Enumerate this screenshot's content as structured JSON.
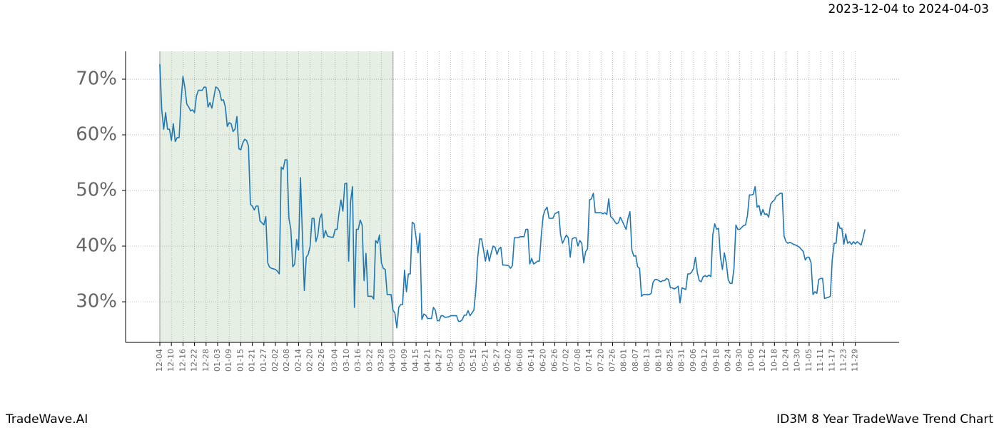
{
  "chart_data": {
    "type": "line",
    "title": "2023-12-04 to 2024-04-03",
    "footer_left": "TradeWave.AI",
    "footer_right": "ID3M 8 Year TradeWave Trend Chart",
    "color": "#1f77b4",
    "grid": true,
    "highlight": {
      "from": "12-04",
      "to": "04-03",
      "color": "#e5efe3"
    },
    "ylim": [
      22.7,
      75
    ],
    "yticks": [
      {
        "value": 30,
        "label": "30%"
      },
      {
        "value": 40,
        "label": "40%"
      },
      {
        "value": 50,
        "label": "50%"
      },
      {
        "value": 60,
        "label": "60%"
      },
      {
        "value": 70,
        "label": "70%"
      }
    ],
    "xticks": [
      "12-04",
      "12-10",
      "12-16",
      "12-22",
      "12-28",
      "01-03",
      "01-09",
      "01-15",
      "01-21",
      "01-27",
      "02-02",
      "02-08",
      "02-14",
      "02-20",
      "02-26",
      "03-04",
      "03-10",
      "03-16",
      "03-22",
      "03-28",
      "04-03",
      "04-09",
      "04-15",
      "04-21",
      "04-27",
      "05-03",
      "05-09",
      "05-15",
      "05-21",
      "05-27",
      "06-02",
      "06-08",
      "06-14",
      "06-20",
      "06-26",
      "07-02",
      "07-08",
      "07-14",
      "07-20",
      "07-26",
      "08-01",
      "08-07",
      "08-13",
      "08-19",
      "08-25",
      "08-31",
      "09-06",
      "09-12",
      "09-18",
      "09-24",
      "09-30",
      "10-06",
      "10-12",
      "10-18",
      "10-24",
      "10-30",
      "11-05",
      "11-11",
      "11-17",
      "11-23",
      "11-29"
    ],
    "x": [
      "12-04",
      "12-05",
      "12-06",
      "12-07",
      "12-08",
      "12-09",
      "12-10",
      "12-11",
      "12-12",
      "12-13",
      "12-14",
      "12-15",
      "12-16",
      "12-17",
      "12-18",
      "12-19",
      "12-20",
      "12-21",
      "12-22",
      "12-23",
      "12-24",
      "12-25",
      "12-26",
      "12-27",
      "12-28",
      "12-29",
      "12-30",
      "12-31",
      "01-02",
      "01-03",
      "01-04",
      "01-05",
      "01-06",
      "01-07",
      "01-08",
      "01-09",
      "01-10",
      "01-11",
      "01-12",
      "01-13",
      "01-14",
      "01-15",
      "01-16",
      "01-17",
      "01-18",
      "01-19",
      "01-20",
      "01-21",
      "01-22",
      "01-23",
      "01-24",
      "01-25",
      "01-26",
      "01-27",
      "01-28",
      "01-29",
      "01-30",
      "01-31",
      "02-02",
      "02-03",
      "02-04",
      "02-05",
      "02-06",
      "02-07",
      "02-08",
      "02-09",
      "02-10",
      "02-11",
      "02-12",
      "02-13",
      "02-14",
      "02-15",
      "02-16",
      "02-17",
      "02-18",
      "02-19",
      "02-20",
      "02-21",
      "02-22",
      "02-23",
      "02-24",
      "02-25",
      "02-26",
      "02-27",
      "02-28",
      "02-29",
      "03-02",
      "03-03",
      "03-04",
      "03-05",
      "03-06",
      "03-07",
      "03-08",
      "03-09",
      "03-10",
      "03-11",
      "03-12",
      "03-13",
      "03-14",
      "03-15",
      "03-16",
      "03-17",
      "03-18",
      "03-19",
      "03-20",
      "03-21",
      "03-22",
      "03-23",
      "03-24",
      "03-25",
      "03-26",
      "03-27",
      "03-28",
      "03-29",
      "03-30",
      "03-31",
      "04-02",
      "04-03",
      "04-04",
      "04-05",
      "04-06",
      "04-07",
      "04-08",
      "04-09",
      "04-10",
      "04-11",
      "04-12",
      "04-13",
      "04-14",
      "04-15",
      "04-16",
      "04-17",
      "04-18",
      "04-19",
      "04-20",
      "04-21",
      "04-22",
      "04-23",
      "04-24",
      "04-25",
      "04-26",
      "04-27",
      "04-28",
      "04-29",
      "04-30",
      "05-02",
      "05-03",
      "05-04",
      "05-05",
      "05-06",
      "05-07",
      "05-08",
      "05-09",
      "05-10",
      "05-11",
      "05-12",
      "05-13",
      "05-14",
      "05-15",
      "05-16",
      "05-17",
      "05-18",
      "05-19",
      "05-20",
      "05-21",
      "05-22",
      "05-23",
      "05-24",
      "05-25",
      "05-26",
      "05-27",
      "05-28",
      "05-29",
      "05-30",
      "05-31",
      "06-02",
      "06-03",
      "06-04",
      "06-05",
      "06-06",
      "06-07",
      "06-08",
      "06-09",
      "06-10",
      "06-11",
      "06-12",
      "06-13",
      "06-14",
      "06-15",
      "06-16",
      "06-17",
      "06-18",
      "06-19",
      "06-20",
      "06-21",
      "06-22",
      "06-23",
      "06-24",
      "06-25",
      "06-26",
      "06-27",
      "06-28",
      "06-29",
      "06-30",
      "07-02",
      "07-03",
      "07-04",
      "07-05",
      "07-06",
      "07-07",
      "07-08",
      "07-09",
      "07-10",
      "07-11",
      "07-12",
      "07-13",
      "07-14",
      "07-15",
      "07-16",
      "07-17",
      "07-18",
      "07-19",
      "07-20",
      "07-21",
      "07-22",
      "07-23",
      "07-24",
      "07-25",
      "07-26",
      "07-27",
      "07-28",
      "07-29",
      "07-30",
      "07-31",
      "08-02",
      "08-03",
      "08-04",
      "08-05",
      "08-06",
      "08-07",
      "08-08",
      "08-09",
      "08-10",
      "08-11",
      "08-12",
      "08-13",
      "08-14",
      "08-15",
      "08-16",
      "08-17",
      "08-18",
      "08-19",
      "08-20",
      "08-21",
      "08-22",
      "08-23",
      "08-24",
      "08-25",
      "08-26",
      "08-27",
      "08-28",
      "08-29",
      "08-30",
      "08-31",
      "09-02",
      "09-03",
      "09-04",
      "09-05",
      "09-06",
      "09-07",
      "09-08",
      "09-09",
      "09-10",
      "09-11",
      "09-12",
      "09-13",
      "09-14",
      "09-15",
      "09-16",
      "09-17",
      "09-18",
      "09-19",
      "09-20",
      "09-21",
      "09-22",
      "09-23",
      "09-24",
      "09-25",
      "09-26",
      "09-27",
      "09-28",
      "09-29",
      "09-30",
      "10-02",
      "10-03",
      "10-04",
      "10-05",
      "10-06",
      "10-07",
      "10-08",
      "10-09",
      "10-10",
      "10-11",
      "10-12",
      "10-13",
      "10-14",
      "10-15",
      "10-16",
      "10-17",
      "10-18",
      "10-19",
      "10-20",
      "10-21",
      "10-22",
      "10-23",
      "10-24",
      "10-25",
      "10-26",
      "10-27",
      "10-28",
      "10-29",
      "10-30",
      "10-31",
      "11-02",
      "11-03",
      "11-04",
      "11-05",
      "11-06",
      "11-07",
      "11-08",
      "11-09",
      "11-10",
      "11-11",
      "11-12",
      "11-13",
      "11-14",
      "11-15",
      "11-16",
      "11-17",
      "11-18",
      "11-19",
      "11-20",
      "11-21",
      "11-22",
      "11-23",
      "11-24",
      "11-25",
      "11-26",
      "11-27",
      "11-28",
      "11-29",
      "11-30",
      "12-02",
      "12-03",
      "12-04"
    ],
    "values": [
      72.7,
      64.5,
      61,
      64,
      61,
      61,
      59,
      62,
      58.8,
      59.5,
      59.5,
      66,
      70.5,
      68.5,
      65.5,
      65,
      64.3,
      64.5,
      64,
      67,
      68,
      68,
      68,
      68.6,
      68.5,
      65,
      65.8,
      64.8,
      68.6,
      68.4,
      67.8,
      66.2,
      66.3,
      65,
      61.5,
      62.2,
      62,
      60.6,
      61,
      63.3,
      57.5,
      57.3,
      58.5,
      59.2,
      59,
      58,
      47.5,
      47.2,
      46.5,
      47.2,
      47.2,
      44.5,
      44.2,
      43.8,
      45.3,
      37,
      36.2,
      36,
      35.8,
      35.5,
      35,
      54.2,
      53.8,
      55.5,
      55.5,
      45,
      43,
      36.3,
      36.8,
      41.2,
      39.3,
      52.3,
      42,
      32,
      38,
      38.5,
      40,
      45,
      45,
      40.8,
      42,
      45,
      45.8,
      41.5,
      42.8,
      41.8,
      41.6,
      41.6,
      43,
      43,
      46,
      48.3,
      46.3,
      51.2,
      51.3,
      37.3,
      48,
      50.7,
      29,
      43,
      43,
      44.7,
      43.8,
      33.8,
      38.7,
      31,
      31,
      31,
      30.5,
      41,
      40.5,
      42,
      37,
      36,
      35.8,
      31.3,
      31.3,
      28.5,
      28,
      25.3,
      29,
      29.5,
      29.5,
      35.7,
      31.8,
      35,
      35,
      44.3,
      44,
      41.5,
      38.8,
      42.3,
      26.8,
      27.8,
      27.6,
      27,
      27,
      27,
      29,
      28.5,
      26.6,
      26.6,
      27.5,
      27.5,
      27.2,
      27.3,
      27.5,
      27.5,
      27.5,
      27.5,
      26.5,
      26.5,
      26.8,
      27.6,
      27.6,
      28.4,
      27.5,
      28,
      28.5,
      32,
      38,
      41.3,
      41.3,
      39.3,
      37.3,
      39.3,
      37.3,
      38.8,
      40,
      39.8,
      38.5,
      39.5,
      39.8,
      36.6,
      36.6,
      36.5,
      36,
      36.5,
      41.5,
      41.5,
      41.5,
      41.7,
      41.7,
      41.7,
      43,
      43,
      36.8,
      37.8,
      36.8,
      37,
      37.3,
      37.3,
      42,
      45.5,
      46.5,
      47,
      45,
      45,
      45,
      45.8,
      46,
      46.2,
      42,
      40.5,
      42,
      41.5,
      38,
      41.3,
      41.5,
      41.5,
      40,
      41,
      40.5,
      37,
      39,
      39.5,
      48.3,
      48.5,
      49.5,
      46,
      46,
      46,
      46,
      45.8,
      46,
      45.7,
      48.5,
      45.3,
      45,
      44.5,
      44,
      44.2,
      45.2,
      44.5,
      43,
      45,
      46.2,
      39.3,
      38.2,
      38.3,
      36.3,
      36,
      31,
      31.3,
      31.3,
      31.3,
      31.3,
      31.5,
      33.5,
      34,
      34,
      33.8,
      33.6,
      33.8,
      33.8,
      34.2,
      34,
      32.5,
      32.5,
      32.3,
      32.5,
      32.8,
      29.8,
      32.5,
      32.2,
      35,
      35,
      35.3,
      36,
      38,
      35.2,
      33.8,
      33.6,
      34.5,
      34.7,
      34.5,
      34.8,
      34.5,
      42,
      44,
      43,
      43.2,
      38,
      35.8,
      38.8,
      37,
      34,
      33.3,
      33.3,
      36,
      43.8,
      43,
      43,
      43.7,
      43.8,
      45.5,
      49.2,
      49.2,
      49.3,
      50.7,
      47,
      47.3,
      45.5,
      46.6,
      45.7,
      45.8,
      45.2,
      47.5,
      48,
      48.3,
      49,
      49.2,
      49.5,
      49.5,
      41.8,
      40.8,
      40.5,
      40.7,
      40.5,
      40.3,
      40.2,
      40,
      39.8,
      39,
      37.5,
      38,
      38,
      37,
      31.3,
      31.8,
      31.5,
      34,
      34.2,
      34.2,
      30.6,
      30.7,
      30.8,
      31,
      37.5,
      40.5,
      40.5,
      44.3,
      43.2,
      43.2,
      40.3,
      42.2,
      40.5,
      40.8,
      40.3,
      40.8,
      40.4,
      40.8,
      40.2,
      41.5,
      43
    ]
  }
}
